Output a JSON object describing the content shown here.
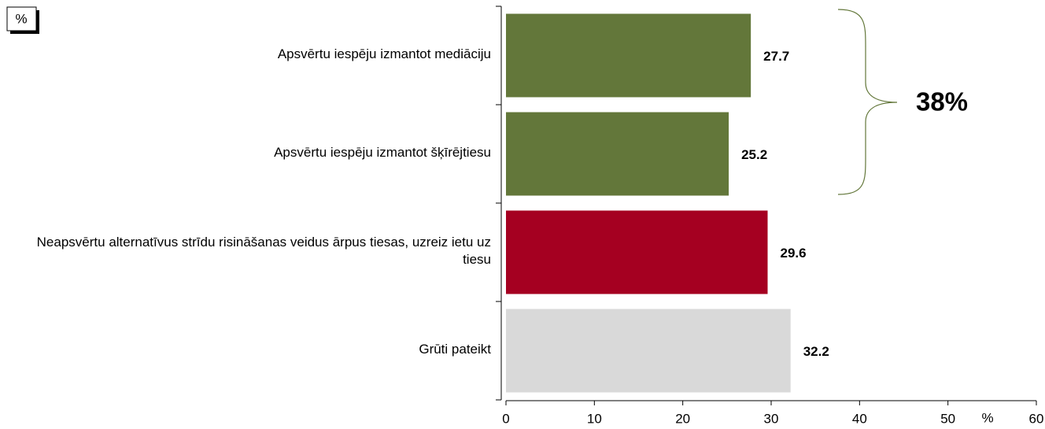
{
  "chart_data": {
    "type": "barh",
    "unit_box": "%",
    "xlabel": "%",
    "categories": [
      "Apsvērtu iespēju izmantot mediāciju",
      "Apsvērtu iespēju izmantot šķīrējtiesu",
      "Neapsvērtu alternatīvus strīdu risināšanas veidus ārpus tiesas, uzreiz ietu uz tiesu",
      "Grūti pateikt"
    ],
    "values": [
      27.7,
      25.2,
      29.6,
      32.2
    ],
    "colors": [
      "#63773a",
      "#63773a",
      "#a50021",
      "#d9d9d9"
    ],
    "xlim": [
      0,
      60
    ],
    "xticks": [
      0,
      10,
      20,
      30,
      40,
      50,
      60
    ],
    "annotation": {
      "text": "38%",
      "color": "#63773a"
    }
  }
}
